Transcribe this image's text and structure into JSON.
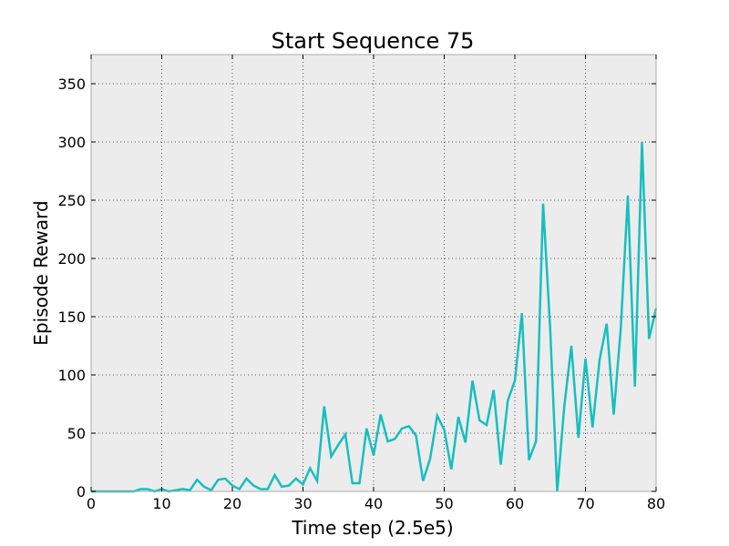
{
  "chart_data": {
    "type": "line",
    "title": "Start Sequence 75",
    "xlabel": "Time step (2.5e5)",
    "ylabel": "Episode Reward",
    "xlim": [
      0,
      80
    ],
    "ylim": [
      0,
      375
    ],
    "xticks": [
      0,
      10,
      20,
      30,
      40,
      50,
      60,
      70,
      80
    ],
    "yticks": [
      0,
      50,
      100,
      150,
      200,
      250,
      300,
      350
    ],
    "xtick_labels": [
      "0",
      "10",
      "20",
      "30",
      "40",
      "50",
      "60",
      "70",
      "80"
    ],
    "ytick_labels": [
      "0",
      "50",
      "100",
      "150",
      "200",
      "250",
      "300",
      "350"
    ],
    "grid": true,
    "legend": "none",
    "colors": {
      "line": "#17bec0",
      "plot_background": "#ececec",
      "frame": "#aaaaaa",
      "grid": "#555555"
    },
    "series": [
      {
        "x": [
          0,
          1,
          2,
          3,
          4,
          5,
          6,
          7,
          8,
          9,
          10,
          11,
          12,
          13,
          14,
          15,
          16,
          17,
          18,
          19,
          20,
          21,
          22,
          23,
          24,
          25,
          26,
          27,
          28,
          29,
          30,
          31,
          32,
          33,
          34,
          35,
          36,
          37,
          38,
          39,
          40,
          41,
          42,
          43,
          44,
          45,
          46,
          47,
          48,
          49,
          50,
          51,
          52,
          53,
          54,
          55,
          56,
          57,
          58,
          59,
          60,
          61,
          62,
          63,
          64,
          65,
          66,
          67,
          68,
          69,
          70,
          71,
          72,
          73,
          74,
          75,
          76,
          77,
          78,
          79,
          80
        ],
        "values": [
          0,
          0,
          0,
          0,
          0,
          0,
          0,
          2,
          2,
          0,
          2,
          0,
          1,
          2,
          1,
          10,
          4,
          1,
          10,
          11,
          5,
          2,
          11,
          5,
          2,
          2,
          14,
          4,
          5,
          11,
          6,
          20,
          9,
          73,
          30,
          40,
          49,
          7,
          7,
          54,
          31,
          66,
          43,
          45,
          54,
          56,
          48,
          9,
          28,
          65,
          53,
          19,
          64,
          42,
          95,
          61,
          57,
          87,
          23,
          78,
          95,
          153,
          27,
          43,
          247,
          140,
          0,
          73,
          125,
          46,
          114,
          55,
          113,
          144,
          66,
          140,
          254,
          90,
          300,
          131,
          157
        ]
      }
    ]
  }
}
